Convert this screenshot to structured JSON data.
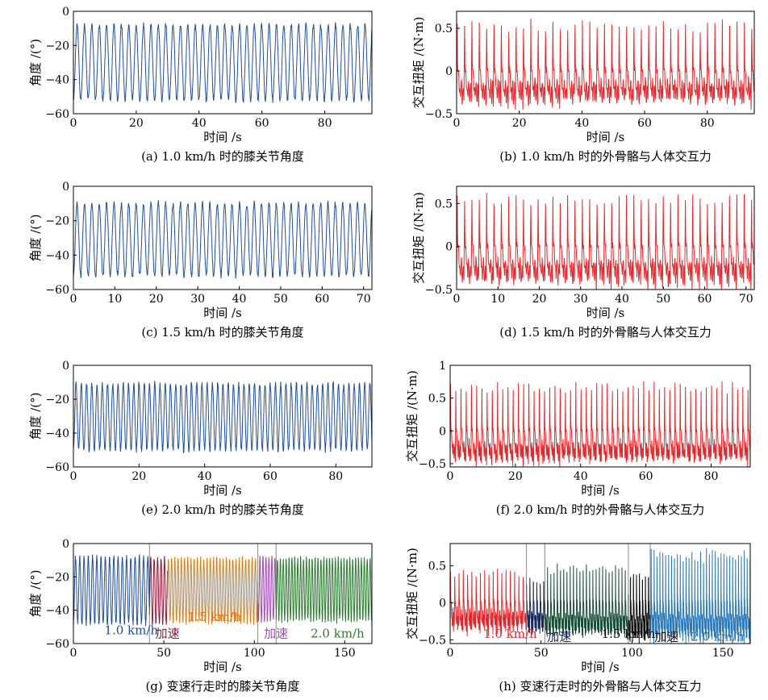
{
  "colors": {
    "blue": "#1f4e9c",
    "red": "#e8262a",
    "orange": "#d97c1c",
    "purple": "#9c4fb0",
    "green": "#2e7d32",
    "darkred": "#8b1a3a",
    "navy": "#1b2a5a",
    "black": "#111111",
    "teal": "#2878b8",
    "darkgreen": "#1e4d3a"
  },
  "chart_data": [
    {
      "id": "a",
      "type": "line",
      "caption": "(a) 1.0 km/h 时的膝关节角度",
      "xlabel": "时间 /s",
      "ylabel": "角度 /(°)",
      "xlim": [
        0,
        95
      ],
      "ylim": [
        -60,
        0
      ],
      "xticks": [
        0,
        20,
        40,
        60,
        80
      ],
      "yticks": [
        0,
        -20,
        -40,
        -60
      ],
      "signal": {
        "kind": "angle",
        "period": 2.35,
        "min": -52,
        "max": -8
      },
      "series": [
        {
          "name": "knee angle",
          "color": "#1f4e9c",
          "x_range": [
            0,
            95
          ]
        }
      ]
    },
    {
      "id": "b",
      "type": "line",
      "caption": "(b) 1.0 km/h 时的外骨骼与人体交互力",
      "xlabel": "时间 /s",
      "ylabel": "交互扭矩 /(N·m)",
      "xlim": [
        0,
        95
      ],
      "ylim": [
        -0.5,
        0.7
      ],
      "xticks": [
        0,
        20,
        40,
        60,
        80
      ],
      "yticks": [
        0.5,
        0,
        -0.5
      ],
      "ytick_labels": [
        "0.5",
        "0",
        "−0.5"
      ],
      "signal": {
        "kind": "torque",
        "period": 2.35,
        "peak": 0.58,
        "trough": -0.32
      },
      "series": [
        {
          "name": "interaction torque",
          "color": "#e8262a",
          "x_range": [
            0,
            95
          ]
        }
      ]
    },
    {
      "id": "c",
      "type": "line",
      "caption": "(c) 1.5 km/h 时的膝关节角度",
      "xlabel": "时间 /s",
      "ylabel": "角度 /(°)",
      "xlim": [
        0,
        72
      ],
      "ylim": [
        -60,
        0
      ],
      "xticks": [
        0,
        10,
        20,
        30,
        40,
        50,
        60,
        70
      ],
      "yticks": [
        0,
        -20,
        -40,
        -60
      ],
      "signal": {
        "kind": "angle",
        "period": 1.78,
        "min": -52,
        "max": -10
      },
      "series": [
        {
          "name": "knee angle",
          "color": "#1f4e9c",
          "x_range": [
            0,
            72
          ]
        }
      ]
    },
    {
      "id": "d",
      "type": "line",
      "caption": "(d) 1.5 km/h 时的外骨骼与人体交互力",
      "xlabel": "时间 /s",
      "ylabel": "交互扭矩 /(N·m)",
      "xlim": [
        0,
        72
      ],
      "ylim": [
        -0.5,
        0.7
      ],
      "xticks": [
        0,
        10,
        20,
        30,
        40,
        50,
        60,
        70
      ],
      "yticks": [
        0.5,
        0,
        -0.5
      ],
      "ytick_labels": [
        "0.5",
        "0",
        "−0.5"
      ],
      "signal": {
        "kind": "torque",
        "period": 1.78,
        "peak": 0.6,
        "trough": -0.38
      },
      "series": [
        {
          "name": "interaction torque",
          "color": "#e8262a",
          "x_range": [
            0,
            72
          ]
        }
      ]
    },
    {
      "id": "e",
      "type": "line",
      "caption": "(e) 2.0 km/h 时的膝关节角度",
      "xlabel": "时间 /s",
      "ylabel": "角度 /(°)",
      "xlim": [
        0,
        91
      ],
      "ylim": [
        -60,
        0
      ],
      "xticks": [
        0,
        20,
        40,
        60,
        80
      ],
      "yticks": [
        0,
        -20,
        -40,
        -60
      ],
      "signal": {
        "kind": "angle",
        "period": 1.6,
        "min": -50,
        "max": -11
      },
      "series": [
        {
          "name": "knee angle",
          "color": "#1f4e9c",
          "x_range": [
            0,
            91
          ]
        }
      ]
    },
    {
      "id": "f",
      "type": "line",
      "caption": "(f) 2.0 km/h 时的外骨骼与人体交互力",
      "xlabel": "时间 /s",
      "ylabel": "交互扭矩 /(N·m)",
      "xlim": [
        0,
        92
      ],
      "ylim": [
        -0.55,
        1
      ],
      "xticks": [
        0,
        20,
        40,
        60,
        80
      ],
      "yticks": [
        1,
        0.5,
        0,
        -0.5
      ],
      "ytick_labels": [
        "1",
        "0.5",
        "0",
        "−0.5"
      ],
      "signal": {
        "kind": "torque",
        "period": 1.6,
        "peak": 0.72,
        "trough": -0.42
      },
      "series": [
        {
          "name": "interaction torque",
          "color": "#e8262a",
          "x_range": [
            0,
            92
          ]
        }
      ]
    },
    {
      "id": "g",
      "type": "line",
      "caption": "(g) 变速行走时的膝关节角度",
      "xlabel": "时间 /s",
      "ylabel": "角度 /(°)",
      "xlim": [
        0,
        165
      ],
      "ylim": [
        -60,
        0
      ],
      "xticks": [
        0,
        50,
        100,
        150
      ],
      "yticks": [
        0,
        -20,
        -40,
        -60
      ],
      "series": [
        {
          "name": "1.0km/h",
          "color": "#1f4e9c",
          "x_range": [
            0,
            42
          ],
          "period": 2.35,
          "min": -48,
          "max": -8
        },
        {
          "name": "加速",
          "color": "#8b1a3a",
          "x_range": [
            42,
            52
          ],
          "period": 1.9,
          "min": -48,
          "max": -9
        },
        {
          "name": "1.5km/h",
          "color": "#d97c1c",
          "x_range": [
            52,
            102
          ],
          "period": 1.78,
          "min": -47,
          "max": -9
        },
        {
          "name": "加速",
          "color": "#9c4fb0",
          "x_range": [
            102,
            112
          ],
          "period": 1.65,
          "min": -46,
          "max": -8
        },
        {
          "name": "2.0km/h",
          "color": "#2e7d32",
          "x_range": [
            112,
            165
          ],
          "period": 1.6,
          "min": -46,
          "max": -9
        }
      ],
      "annotations": [
        {
          "text": "1.0 km/h",
          "color": "#1f4e9c",
          "x": 32,
          "y": -52
        },
        {
          "text": "加速",
          "color": "#8b1a3a",
          "x": 52,
          "y": -54
        },
        {
          "text": "1.5 km/h",
          "color": "#d97c1c",
          "x": 78,
          "y": -44
        },
        {
          "text": "加速",
          "color": "#9c4fb0",
          "x": 112,
          "y": -54
        },
        {
          "text": "2.0 km/h",
          "color": "#2e7d32",
          "x": 146,
          "y": -54
        }
      ],
      "dividers": [
        42,
        102,
        112
      ]
    },
    {
      "id": "h",
      "type": "line",
      "caption": "(h) 变速行走时的外骨骼与人体交互力",
      "xlabel": "时间 /s",
      "ylabel": "交互扭矩 /(N·m)",
      "xlim": [
        0,
        165
      ],
      "ylim": [
        -0.55,
        0.8
      ],
      "xticks": [
        0,
        50,
        100,
        150
      ],
      "yticks": [
        0.5,
        0,
        -0.5
      ],
      "ytick_labels": [
        "0.5",
        "0",
        "−0.5"
      ],
      "series": [
        {
          "name": "1.0km/h",
          "color": "#e8262a",
          "x_range": [
            0,
            42
          ],
          "period": 2.35,
          "peak": 0.45,
          "trough": -0.3
        },
        {
          "name": "加速",
          "color": "#1b2a5a",
          "x_range": [
            42,
            52
          ],
          "period": 1.9,
          "peak": 0.45,
          "trough": -0.35
        },
        {
          "name": "1.5km/h",
          "color": "#1e4d3a",
          "x_range": [
            52,
            98
          ],
          "period": 1.78,
          "peak": 0.55,
          "trough": -0.4
        },
        {
          "name": "加速",
          "color": "#111111",
          "x_range": [
            98,
            110
          ],
          "period": 1.65,
          "peak": 0.6,
          "trough": -0.45
        },
        {
          "name": "2.0km/h",
          "color": "#2878b8",
          "x_range": [
            110,
            165
          ],
          "period": 1.6,
          "peak": 0.7,
          "trough": -0.42
        }
      ],
      "annotations": [
        {
          "text": "1.0 km/h",
          "color": "#e8262a",
          "x": 33,
          "y": -0.42
        },
        {
          "text": "加速",
          "color": "#1b2a5a",
          "x": 60,
          "y": -0.46
        },
        {
          "text": "1.5 km/h",
          "color": "#111111",
          "x": 98,
          "y": -0.42
        },
        {
          "text": "加速",
          "color": "#111111",
          "x": 119,
          "y": -0.46
        },
        {
          "text": "2.0 km/h",
          "color": "#2878b8",
          "x": 147,
          "y": -0.46
        }
      ],
      "dividers": [
        42,
        52,
        98,
        110
      ]
    }
  ]
}
